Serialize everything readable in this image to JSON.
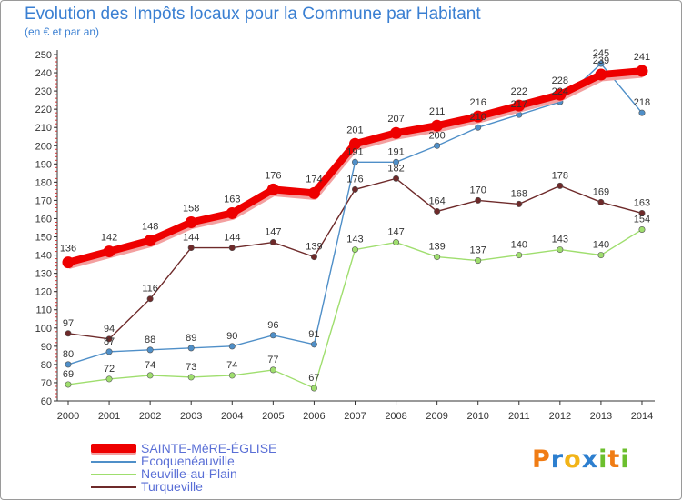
{
  "header": {
    "title": "Evolution des Impôts locaux pour la Commune par Habitant",
    "subtitle": "(en € et par an)"
  },
  "logo": {
    "letters": [
      "P",
      "r",
      "o",
      "x",
      "i",
      "t",
      "i"
    ],
    "colors": [
      "#f07c14",
      "#2d7fcf",
      "#f2b418",
      "#2d7fcf",
      "#6cbf2e",
      "#f07c14",
      "#6cbf2e"
    ]
  },
  "chart_data": {
    "type": "line",
    "title": "Evolution des Impôts locaux pour la Commune par Habitant",
    "subtitle": "(en € et par an)",
    "xlabel": "",
    "ylabel": "",
    "x": [
      "2000",
      "2001",
      "2002",
      "2003",
      "2004",
      "2005",
      "2006",
      "2007",
      "2008",
      "2009",
      "2010",
      "2011",
      "2012",
      "2013",
      "2014"
    ],
    "ylim": [
      60,
      250
    ],
    "yticks": [
      60,
      70,
      80,
      90,
      100,
      110,
      120,
      130,
      140,
      150,
      160,
      170,
      180,
      190,
      200,
      210,
      220,
      230,
      240,
      250
    ],
    "grid": false,
    "legend_position": "bottom-left",
    "series": [
      {
        "name": "SAINTE-MèRE-ÉGLISE",
        "color": "#ee0000",
        "values": [
          136,
          142,
          148,
          158,
          163,
          176,
          174,
          201,
          207,
          211,
          216,
          222,
          228,
          239,
          241
        ],
        "labels": [
          "136",
          "142",
          "148",
          "158",
          "163",
          "176",
          "174",
          "201",
          "207",
          "211",
          "216",
          "222",
          "228",
          "239",
          "241"
        ]
      },
      {
        "name": "Écoquenéauville",
        "color": "#4f8fc8",
        "values": [
          80,
          87,
          88,
          89,
          90,
          96,
          91,
          191,
          191,
          200,
          210,
          217,
          224,
          245,
          218
        ],
        "labels": [
          "80",
          "87",
          "88",
          "89",
          "90",
          "96",
          "91",
          "191",
          "191",
          "200",
          "210",
          "217",
          "224",
          "245",
          "218"
        ]
      },
      {
        "name": "Neuville-au-Plain",
        "color": "#9fde6e",
        "values": [
          69,
          72,
          74,
          73,
          74,
          77,
          67,
          143,
          147,
          139,
          137,
          140,
          143,
          140,
          154
        ],
        "labels": [
          "69",
          "72",
          "74",
          "73",
          "74",
          "77",
          "67",
          "143",
          "147",
          "139",
          "137",
          "140",
          "143",
          "140",
          "154"
        ]
      },
      {
        "name": "Turqueville",
        "color": "#6e2a2a",
        "values": [
          97,
          94,
          116,
          144,
          144,
          147,
          139,
          176,
          182,
          164,
          170,
          168,
          178,
          169,
          163
        ],
        "labels": [
          "97",
          "94",
          "116",
          "144",
          "144",
          "147",
          "139",
          "176",
          "182",
          "164",
          "170",
          "168",
          "178",
          "169",
          "163"
        ]
      }
    ]
  }
}
